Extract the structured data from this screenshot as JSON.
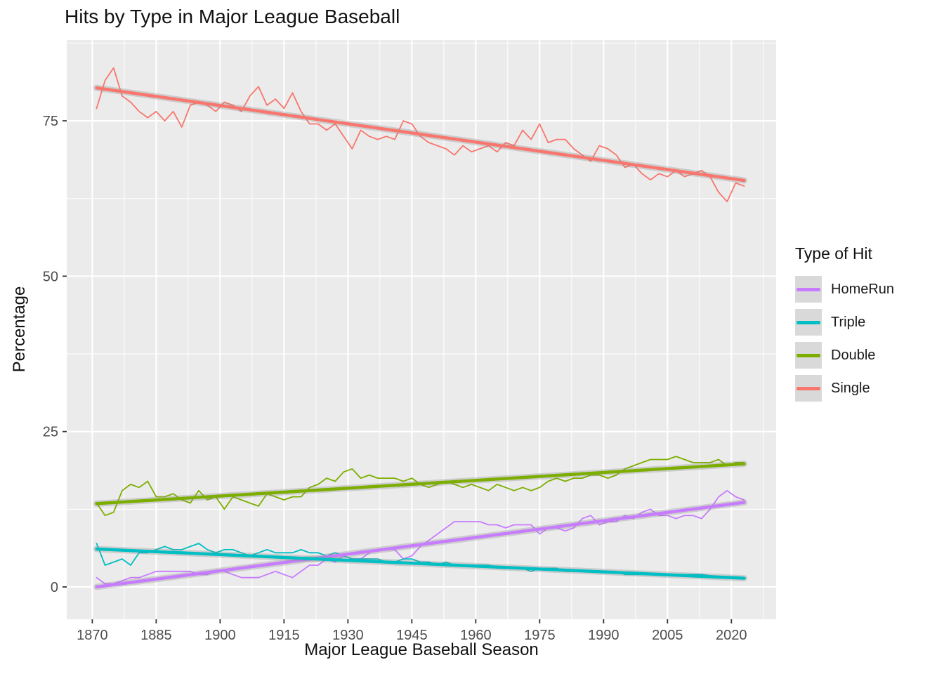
{
  "chart_data": {
    "type": "line",
    "title": "Hits by Type in Major League Baseball",
    "xlabel": "Major League Baseball Season",
    "ylabel": "Percentage",
    "legend_title": "Type of Hit",
    "legend_position": "right",
    "grid": true,
    "panel_bg": "#EBEBEB",
    "grid_color": "#FFFFFF",
    "tick_label_color": "#4D4D4D",
    "tick_mark_color": "#333333",
    "trend_band_color": "#8C8C8C",
    "xlim": [
      1864,
      2030.5
    ],
    "ylim": [
      -5.2,
      88
    ],
    "x_ticks": [
      1870,
      1885,
      1900,
      1915,
      1930,
      1945,
      1960,
      1975,
      1990,
      2005,
      2020
    ],
    "y_ticks": [
      0,
      25,
      50,
      75
    ],
    "x": [
      1871,
      1873,
      1875,
      1877,
      1879,
      1881,
      1883,
      1885,
      1887,
      1889,
      1891,
      1893,
      1895,
      1897,
      1899,
      1901,
      1903,
      1905,
      1907,
      1909,
      1911,
      1913,
      1915,
      1917,
      1919,
      1921,
      1923,
      1925,
      1927,
      1929,
      1931,
      1933,
      1935,
      1937,
      1939,
      1941,
      1943,
      1945,
      1947,
      1949,
      1951,
      1953,
      1955,
      1957,
      1959,
      1961,
      1963,
      1965,
      1967,
      1969,
      1971,
      1973,
      1975,
      1977,
      1979,
      1981,
      1983,
      1985,
      1987,
      1989,
      1991,
      1993,
      1995,
      1997,
      1999,
      2001,
      2003,
      2005,
      2007,
      2009,
      2011,
      2013,
      2015,
      2017,
      2019,
      2021,
      2023
    ],
    "series": [
      {
        "name": "HomeRun",
        "color": "#C77CFF",
        "values": [
          1.5,
          0.5,
          0.5,
          1,
          1.5,
          1.5,
          2,
          2.5,
          2.5,
          2.5,
          2.5,
          2.5,
          2,
          2,
          2.5,
          2.5,
          2,
          1.5,
          1.5,
          1.5,
          2,
          2.5,
          2,
          1.5,
          2.5,
          3.5,
          3.5,
          4.5,
          4,
          5,
          4.5,
          4.5,
          5.5,
          6,
          6,
          6,
          4.5,
          5,
          6.5,
          7.5,
          8.5,
          9.5,
          10.5,
          10.5,
          10.5,
          10.5,
          10,
          10,
          9.5,
          10,
          10,
          10,
          8.5,
          9.5,
          9.5,
          9,
          9.5,
          11,
          11.5,
          10,
          10.5,
          10.5,
          11.5,
          11,
          12,
          12.5,
          11.5,
          11.5,
          11,
          11.5,
          11.5,
          11,
          12.5,
          14.5,
          15.5,
          14.5,
          14
        ],
        "trend": {
          "x": [
            1871,
            2023
          ],
          "y": [
            0.0,
            13.6
          ]
        }
      },
      {
        "name": "Triple",
        "color": "#00BFC4",
        "values": [
          7,
          3.5,
          4,
          4.5,
          3.5,
          5.5,
          5.5,
          6,
          6.5,
          6,
          6,
          6.5,
          7,
          6,
          5.5,
          6,
          6,
          5.5,
          5,
          5.5,
          6,
          5.5,
          5.5,
          5.5,
          6,
          5.5,
          5.5,
          5,
          5.5,
          5,
          4.5,
          4.5,
          4.5,
          4.5,
          4,
          4,
          4.5,
          4.5,
          4,
          4,
          3.5,
          4,
          3.5,
          3.5,
          3.5,
          3.5,
          3.5,
          3,
          3,
          3,
          3,
          2.5,
          3,
          3,
          3,
          2.5,
          2.5,
          2.5,
          2.5,
          2.5,
          2.5,
          2.5,
          2,
          2,
          2,
          2,
          2,
          2,
          2,
          2,
          2,
          2,
          1.8,
          1.7,
          1.5,
          1.6,
          1.5
        ],
        "trend": {
          "x": [
            1871,
            2023
          ],
          "y": [
            6.1,
            1.4
          ]
        }
      },
      {
        "name": "Double",
        "color": "#7CAE00",
        "values": [
          13.5,
          11.5,
          12,
          15.5,
          16.5,
          16,
          17,
          14.5,
          14.5,
          15,
          14,
          13.5,
          15.5,
          14,
          14.5,
          12.5,
          14.5,
          14,
          13.5,
          13,
          15,
          14.5,
          14,
          14.5,
          14.5,
          16,
          16.5,
          17.5,
          17,
          18.5,
          19,
          17.5,
          18,
          17.5,
          17.5,
          17.5,
          17,
          17.5,
          16.5,
          16,
          16.5,
          17,
          16.5,
          16,
          16.5,
          16,
          15.5,
          16.5,
          16,
          15.5,
          16,
          15.5,
          16,
          17,
          17.5,
          17,
          17.5,
          17.5,
          18,
          18,
          17.5,
          18,
          19,
          19.5,
          20,
          20.5,
          20.5,
          20.5,
          21,
          20.5,
          20,
          20,
          20,
          20.5,
          19.5,
          20,
          20
        ],
        "trend": {
          "x": [
            1871,
            2023
          ],
          "y": [
            13.4,
            19.8
          ]
        }
      },
      {
        "name": "Single",
        "color": "#F8766D",
        "values": [
          77,
          81.5,
          83.5,
          79,
          78,
          76.5,
          75.5,
          76.5,
          75,
          76.5,
          74,
          77.5,
          78,
          77.5,
          76.5,
          78,
          77.5,
          76.5,
          79,
          80.5,
          77.5,
          78.5,
          77,
          79.5,
          76.5,
          74.5,
          74.5,
          73.5,
          74.5,
          72.5,
          70.5,
          73.5,
          72.5,
          72,
          72.5,
          72,
          75,
          74.5,
          72.5,
          71.5,
          71,
          70.5,
          69.5,
          71,
          70,
          70.5,
          71,
          70,
          71.5,
          71,
          73.5,
          72,
          74.5,
          71.5,
          72,
          72,
          70.5,
          69.5,
          68.5,
          71,
          70.5,
          69.5,
          67.5,
          68,
          66.5,
          65.5,
          66.5,
          66,
          67,
          66,
          66.5,
          67,
          66,
          63.5,
          62,
          65,
          64.5
        ],
        "trend": {
          "x": [
            1871,
            2023
          ],
          "y": [
            80.3,
            65.4
          ]
        }
      }
    ]
  }
}
